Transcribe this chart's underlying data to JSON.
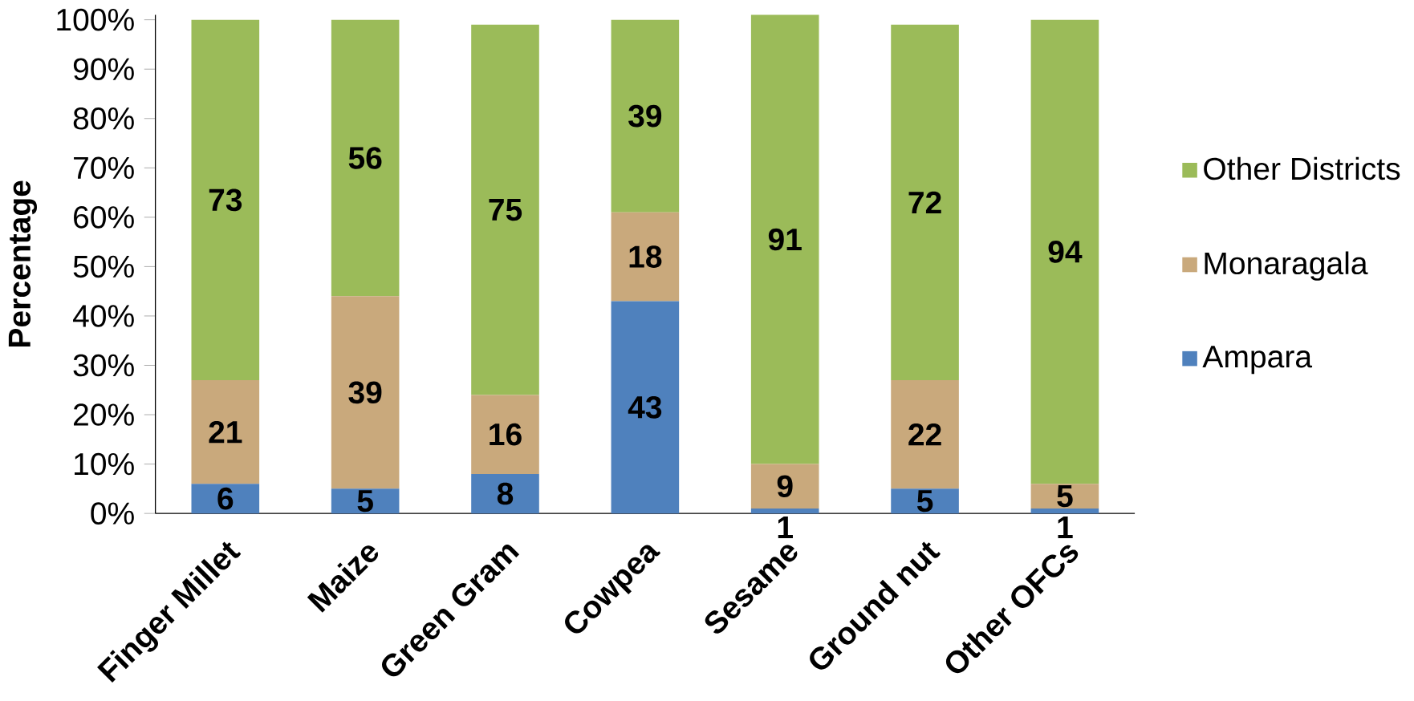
{
  "chart_data": {
    "type": "bar",
    "stacked": true,
    "ylabel": "Percentage",
    "categories": [
      "Finger Millet",
      "Maize",
      "Green Gram",
      "Cowpea",
      "Sesame",
      "Ground nut",
      "Other OFCs"
    ],
    "series": [
      {
        "name": "Ampara",
        "color": "#4f81bd",
        "values": [
          6,
          5,
          8,
          43,
          1,
          5,
          1
        ]
      },
      {
        "name": "Monaragala",
        "color": "#c9a97c",
        "values": [
          21,
          39,
          16,
          18,
          9,
          22,
          5
        ]
      },
      {
        "name": "Other Districts",
        "color": "#9bbb59",
        "values": [
          73,
          56,
          75,
          39,
          91,
          72,
          94
        ]
      }
    ],
    "ylim": [
      0,
      101
    ],
    "yticks": [
      {
        "value": 0,
        "label": "0%"
      },
      {
        "value": 10,
        "label": "10%"
      },
      {
        "value": 20,
        "label": "20%"
      },
      {
        "value": 30,
        "label": "30%"
      },
      {
        "value": 40,
        "label": "40%"
      },
      {
        "value": 50,
        "label": "50%"
      },
      {
        "value": 60,
        "label": "60%"
      },
      {
        "value": 70,
        "label": "70%"
      },
      {
        "value": 80,
        "label": "80%"
      },
      {
        "value": 90,
        "label": "90%"
      },
      {
        "value": 100,
        "label": "100%"
      }
    ],
    "data_labels": true,
    "legend": "right",
    "grid": false
  }
}
